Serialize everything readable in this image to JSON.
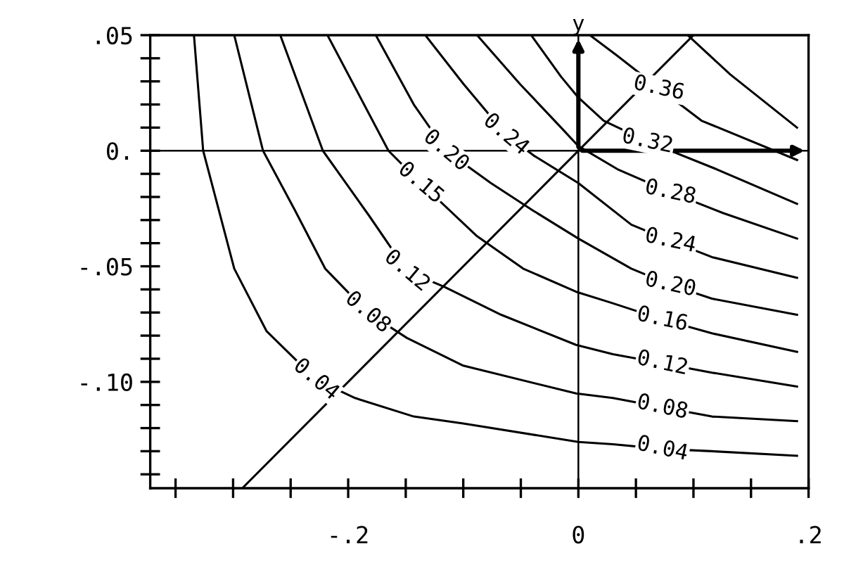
{
  "chart_data": {
    "type": "line",
    "xlim": [
      -0.372,
      0.2
    ],
    "ylim": [
      -0.146,
      0.05
    ],
    "xticks": [
      {
        "value": -0.35,
        "label": null
      },
      {
        "value": -0.3,
        "label": null
      },
      {
        "value": -0.25,
        "label": null
      },
      {
        "value": -0.2,
        "label": "-.2"
      },
      {
        "value": -0.15,
        "label": null
      },
      {
        "value": -0.1,
        "label": null
      },
      {
        "value": -0.05,
        "label": null
      },
      {
        "value": 0,
        "label": "0"
      },
      {
        "value": 0.05,
        "label": null
      },
      {
        "value": 0.1,
        "label": null
      },
      {
        "value": 0.15,
        "label": null
      },
      {
        "value": 0.2,
        "label": ".2"
      }
    ],
    "yticks": [
      {
        "value": -0.14,
        "label": null
      },
      {
        "value": -0.13,
        "label": null
      },
      {
        "value": -0.12,
        "label": null
      },
      {
        "value": -0.11,
        "label": null
      },
      {
        "value": -0.1,
        "label": "-.10"
      },
      {
        "value": -0.09,
        "label": null
      },
      {
        "value": -0.08,
        "label": null
      },
      {
        "value": -0.07,
        "label": null
      },
      {
        "value": -0.06,
        "label": null
      },
      {
        "value": -0.05,
        "label": "-.05"
      },
      {
        "value": -0.04,
        "label": null
      },
      {
        "value": -0.03,
        "label": null
      },
      {
        "value": -0.02,
        "label": null
      },
      {
        "value": -0.01,
        "label": null
      },
      {
        "value": 0,
        "label": "0."
      },
      {
        "value": 0.01,
        "label": null
      },
      {
        "value": 0.02,
        "label": null
      },
      {
        "value": 0.03,
        "label": null
      },
      {
        "value": 0.04,
        "label": null
      },
      {
        "value": 0.05,
        "label": ".05"
      }
    ],
    "series": [
      {
        "color": "#000000",
        "x": [
          -0.334,
          -0.326,
          -0.299,
          -0.271,
          -0.228,
          -0.194,
          -0.143,
          -0.1,
          0,
          0.03,
          0.073,
          0.116,
          0.19
        ],
        "values": [
          0.05,
          0,
          -0.051,
          -0.078,
          -0.099,
          -0.107,
          -0.115,
          -0.118,
          -0.126,
          -0.127,
          -0.129,
          -0.13,
          -0.132
        ]
      },
      {
        "color": "#000000",
        "x": [
          -0.299,
          -0.274,
          -0.246,
          -0.22,
          -0.183,
          -0.149,
          -0.1,
          -0.002,
          0.03,
          0.073,
          0.116,
          0.19
        ],
        "values": [
          0.05,
          0,
          -0.026,
          -0.051,
          -0.07,
          -0.081,
          -0.093,
          -0.105,
          -0.107,
          -0.111,
          -0.115,
          -0.117
        ]
      },
      {
        "color": "#000000",
        "x": [
          -0.259,
          -0.222,
          -0.182,
          -0.149,
          -0.116,
          -0.067,
          -0.002,
          0.03,
          0.073,
          0.116,
          0.19
        ],
        "values": [
          0.05,
          0,
          -0.028,
          -0.052,
          -0.059,
          -0.071,
          -0.084,
          -0.088,
          -0.092,
          -0.096,
          -0.102
        ]
      },
      {
        "color": "#000000",
        "x": [
          -0.218,
          -0.165,
          -0.137,
          -0.088,
          -0.048,
          -0.002,
          0.03,
          0.073,
          0.116,
          0.19
        ],
        "values": [
          0.05,
          0,
          -0.014,
          -0.037,
          -0.051,
          -0.061,
          -0.066,
          -0.073,
          -0.079,
          -0.087
        ]
      },
      {
        "color": "#000000",
        "x": [
          -0.176,
          -0.143,
          -0.115,
          -0.076,
          -0.039,
          0,
          0.046,
          0.08,
          0.116,
          0.19
        ],
        "values": [
          0.05,
          0.02,
          0,
          -0.014,
          -0.026,
          -0.038,
          -0.051,
          -0.058,
          -0.064,
          -0.071
        ]
      },
      {
        "color": "#000000",
        "x": [
          -0.133,
          -0.1,
          -0.063,
          -0.039,
          0,
          0.046,
          0.08,
          0.116,
          0.19
        ],
        "values": [
          0.05,
          0.029,
          0.007,
          -0.002,
          -0.014,
          -0.032,
          -0.039,
          -0.046,
          -0.055
        ]
      },
      {
        "color": "#000000",
        "x": [
          -0.088,
          -0.051,
          -0.015,
          0,
          0.034,
          0.08,
          0.126,
          0.19
        ],
        "values": [
          0.05,
          0.029,
          0.01,
          0.002,
          -0.008,
          -0.018,
          -0.027,
          -0.038
        ]
      },
      {
        "color": "#000000",
        "x": [
          -0.041,
          -0.015,
          0,
          0.022,
          0.06,
          0.12,
          0.19
        ],
        "values": [
          0.05,
          0.032,
          0.023,
          0.013,
          0.004,
          -0.008,
          -0.023
        ]
      },
      {
        "color": "#000000",
        "x": [
          0.01,
          0.034,
          0.07,
          0.107,
          0.19
        ],
        "values": [
          0.05,
          0.041,
          0.027,
          0.013,
          -0.004
        ]
      },
      {
        "color": "#000000",
        "x": [
          0.095,
          0.132,
          0.19
        ],
        "values": [
          0.05,
          0.033,
          0.01
        ]
      },
      {
        "color": "#000000",
        "x": [
          -0.292,
          0.1
        ],
        "values": [
          -0.146,
          0.05
        ]
      }
    ],
    "ref_lines": [
      {
        "axis": "x",
        "value": 0,
        "label": "y",
        "color": "#000000"
      },
      {
        "axis": "y",
        "value": 0,
        "color": "#000000"
      }
    ],
    "annotations": [
      {
        "text": "0.04",
        "x": -0.228,
        "y": -0.099
      },
      {
        "text": "0.08",
        "x": -0.183,
        "y": -0.07
      },
      {
        "text": "0.12",
        "x": -0.149,
        "y": -0.052
      },
      {
        "text": "0.15",
        "x": -0.137,
        "y": -0.014
      },
      {
        "text": "0.20",
        "x": -0.115,
        "y": 0
      },
      {
        "text": "0.24",
        "x": -0.063,
        "y": 0.007
      },
      {
        "text": "0.04",
        "x": 0.073,
        "y": -0.129
      },
      {
        "text": "0.08",
        "x": 0.073,
        "y": -0.111
      },
      {
        "text": "0.12",
        "x": 0.073,
        "y": -0.092
      },
      {
        "text": "0.16",
        "x": 0.073,
        "y": -0.073
      },
      {
        "text": "0.20",
        "x": 0.08,
        "y": -0.058
      },
      {
        "text": "0.24",
        "x": 0.08,
        "y": -0.039
      },
      {
        "text": "0.28",
        "x": 0.08,
        "y": -0.018
      },
      {
        "text": "0.32",
        "x": 0.06,
        "y": 0.004
      },
      {
        "text": "0.36",
        "x": 0.07,
        "y": 0.027
      }
    ]
  }
}
